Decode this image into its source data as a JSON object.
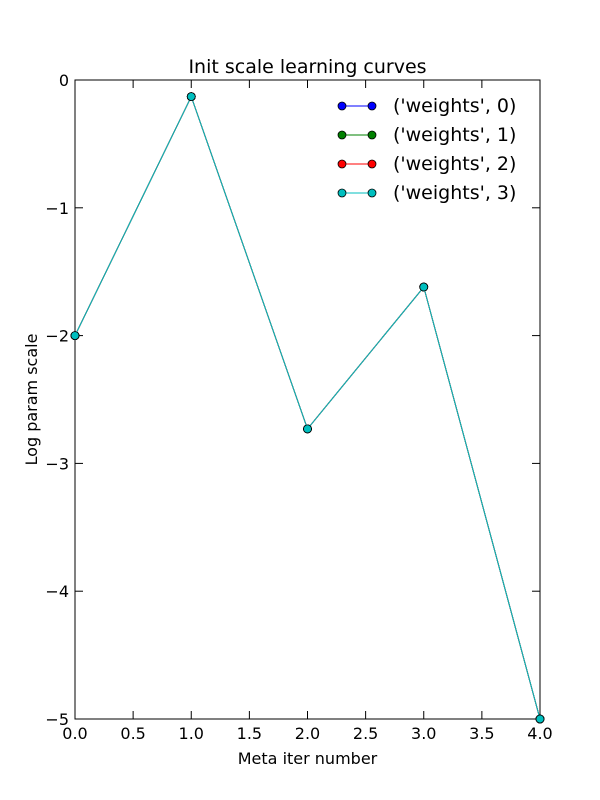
{
  "chart_data": {
    "type": "line",
    "title": "Init scale learning curves",
    "xlabel": "Meta iter number",
    "ylabel": "Log param scale",
    "xlim": [
      0.0,
      4.0
    ],
    "ylim": [
      -5,
      0
    ],
    "xticks": [
      "0.0",
      "0.5",
      "1.0",
      "1.5",
      "2.0",
      "2.5",
      "3.0",
      "3.5",
      "4.0"
    ],
    "yticks": [
      "0",
      "−1",
      "−2",
      "−3",
      "−4",
      "−5"
    ],
    "ytick_values": [
      0,
      -1,
      -2,
      -3,
      -4,
      -5
    ],
    "xtick_values": [
      0.0,
      0.5,
      1.0,
      1.5,
      2.0,
      2.5,
      3.0,
      3.5,
      4.0
    ],
    "grid": false,
    "legend_position": "top-right",
    "x": [
      0,
      1,
      2,
      3,
      4
    ],
    "series": [
      {
        "name": "('weights', 0)",
        "color": "#0000ff",
        "values": [
          -2.0,
          -0.13,
          -2.73,
          -1.62,
          -5.0
        ]
      },
      {
        "name": "('weights', 1)",
        "color": "#008000",
        "values": [
          -2.0,
          -0.13,
          -2.73,
          -1.62,
          -5.0
        ]
      },
      {
        "name": "('weights', 2)",
        "color": "#ff0000",
        "values": [
          -2.0,
          -0.13,
          -2.73,
          -1.62,
          -5.0
        ]
      },
      {
        "name": "('weights', 3)",
        "color": "#00bfbf",
        "values": [
          -2.0,
          -0.13,
          -2.73,
          -1.62,
          -5.0
        ]
      }
    ]
  }
}
